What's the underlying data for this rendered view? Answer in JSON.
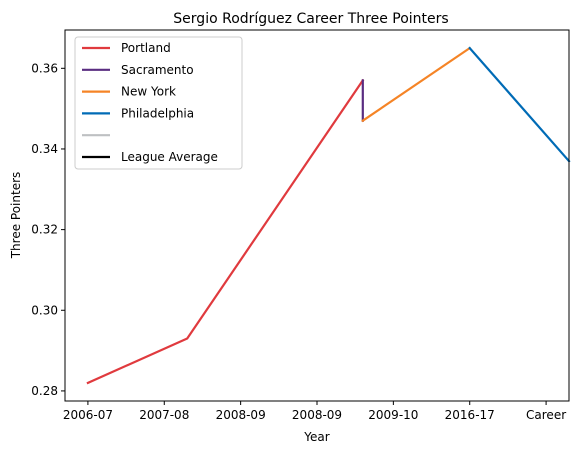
{
  "chart_data": {
    "type": "line",
    "title": "Sergio Rodríguez Career Three Pointers",
    "xlabel": "Year",
    "ylabel": "Three Pointers",
    "x_ticks": [
      {
        "pos": 0,
        "label": "2006-07"
      },
      {
        "pos": 1,
        "label": "2007-08"
      },
      {
        "pos": 2,
        "label": "2008-09"
      },
      {
        "pos": 3,
        "label": "2008-09"
      },
      {
        "pos": 4,
        "label": "2009-10"
      },
      {
        "pos": 5,
        "label": "2016-17"
      },
      {
        "pos": 6,
        "label": "Career"
      }
    ],
    "xlim": [
      -0.3,
      6.3
    ],
    "ylim": [
      0.2775,
      0.3695
    ],
    "y_ticks": [
      0.28,
      0.3,
      0.32,
      0.34,
      0.36
    ],
    "y_tick_labels": [
      "0.28",
      "0.30",
      "0.32",
      "0.34",
      "0.36"
    ],
    "grid": false,
    "legend_position": "top-left",
    "series": [
      {
        "name": "Portland",
        "color": "#E03A3E",
        "points": [
          [
            0,
            0.282
          ],
          [
            1.3,
            0.293
          ],
          [
            3.6,
            0.357
          ]
        ]
      },
      {
        "name": "Sacramento",
        "color": "#5A2D81",
        "points": [
          [
            3.6,
            0.357
          ],
          [
            3.6,
            0.347
          ]
        ]
      },
      {
        "name": "New York",
        "color": "#F58426",
        "points": [
          [
            3.6,
            0.347
          ],
          [
            5,
            0.365
          ]
        ]
      },
      {
        "name": "Philadelphia",
        "color": "#006BB6",
        "points": [
          [
            5,
            0.365
          ],
          [
            6.3,
            0.337
          ]
        ]
      },
      {
        "name": "",
        "color": "#BEC0C2",
        "points": []
      },
      {
        "name": "League Average",
        "color": "#000000",
        "points": []
      }
    ]
  }
}
